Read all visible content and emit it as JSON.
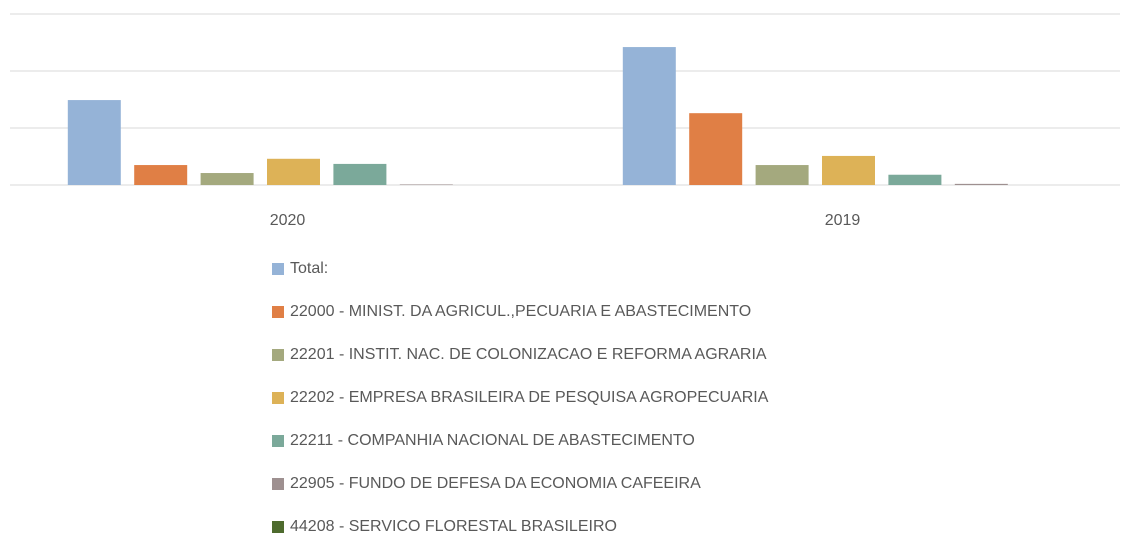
{
  "chart_data": {
    "type": "bar",
    "categories": [
      "2020",
      "2019"
    ],
    "series": [
      {
        "name": "Total:",
        "color": "#95b3d7",
        "values": [
          1.49,
          2.42
        ]
      },
      {
        "name": "22000 - MINIST. DA AGRICUL.,PECUARIA E ABASTECIMENTO",
        "color": "#e07f45",
        "values": [
          0.35,
          1.26
        ]
      },
      {
        "name": "22201 - INSTIT. NAC. DE COLONIZACAO E REFORMA AGRARIA",
        "color": "#a4a97e",
        "values": [
          0.21,
          0.35
        ]
      },
      {
        "name": "22202 - EMPRESA BRASILEIRA DE PESQUISA AGROPECUARIA",
        "color": "#ddb257",
        "values": [
          0.46,
          0.51
        ]
      },
      {
        "name": "22211 - COMPANHIA NACIONAL DE ABASTECIMENTO",
        "color": "#7ba99a",
        "values": [
          0.37,
          0.18
        ]
      },
      {
        "name": "22905 - FUNDO DE DEFESA DA ECONOMIA CAFEEIRA",
        "color": "#9e9090",
        "values": [
          0.01,
          0.02
        ]
      },
      {
        "name": "44208 - SERVICO FLORESTAL BRASILEIRO",
        "color": "#4e6b2e",
        "values": [
          0,
          0
        ]
      }
    ],
    "ylim": [
      0,
      3
    ],
    "yticks": [
      0,
      1,
      2,
      3
    ],
    "grid": true,
    "legend": "bottom"
  }
}
